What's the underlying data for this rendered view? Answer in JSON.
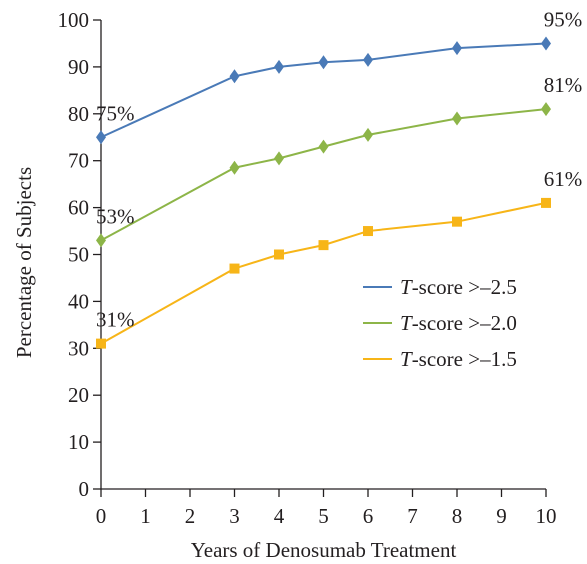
{
  "chart_data": {
    "type": "line",
    "title": "",
    "xlabel": "Years of Denosumab Treatment",
    "ylabel": "Percentage of Subjects",
    "xlim": [
      0,
      10
    ],
    "ylim": [
      0,
      100
    ],
    "x_ticks": [
      0,
      1,
      2,
      3,
      4,
      5,
      6,
      7,
      8,
      9,
      10
    ],
    "y_ticks": [
      0,
      10,
      20,
      30,
      40,
      50,
      60,
      70,
      80,
      90,
      100
    ],
    "grid": false,
    "legend_position": "center-right",
    "series": [
      {
        "name": "T-score >–2.5",
        "name_italic": "T",
        "name_rest": "-score >–2.5",
        "color": "#4a7ab7",
        "marker": "diamond",
        "x": [
          0,
          3,
          4,
          5,
          6,
          8,
          10
        ],
        "values": [
          75,
          88,
          90,
          91,
          91.5,
          94,
          95
        ],
        "annotations": [
          {
            "x": 0,
            "text": "75%"
          },
          {
            "x": 10,
            "text": "95%"
          }
        ]
      },
      {
        "name": "T-score >–2.0",
        "name_italic": "T",
        "name_rest": "-score >–2.0",
        "color": "#8db548",
        "marker": "diamond",
        "x": [
          0,
          3,
          4,
          5,
          6,
          8,
          10
        ],
        "values": [
          53,
          68.5,
          70.5,
          73,
          75.5,
          79,
          81
        ],
        "annotations": [
          {
            "x": 0,
            "text": "53%"
          },
          {
            "x": 10,
            "text": "81%"
          }
        ]
      },
      {
        "name": "T-score >–1.5",
        "name_italic": "T",
        "name_rest": "-score >–1.5",
        "color": "#f7b518",
        "marker": "square",
        "x": [
          0,
          3,
          4,
          5,
          6,
          8,
          10
        ],
        "values": [
          31,
          47,
          50,
          52,
          55,
          57,
          61
        ],
        "annotations": [
          {
            "x": 0,
            "text": "31%"
          },
          {
            "x": 10,
            "text": "61%"
          }
        ]
      }
    ]
  }
}
